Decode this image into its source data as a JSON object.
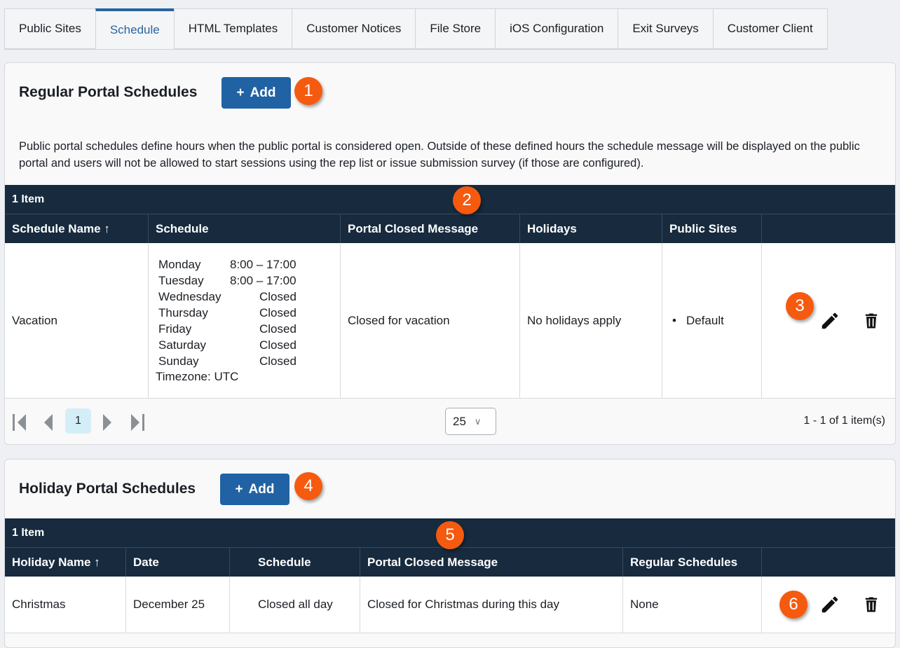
{
  "tabs": [
    {
      "label": "Public Sites"
    },
    {
      "label": "Schedule",
      "active": true
    },
    {
      "label": "HTML Templates"
    },
    {
      "label": "Customer Notices"
    },
    {
      "label": "File Store"
    },
    {
      "label": "iOS Configuration"
    },
    {
      "label": "Exit Surveys"
    },
    {
      "label": "Customer Client"
    }
  ],
  "regular": {
    "title": "Regular Portal Schedules",
    "add_label": "Add",
    "description": "Public portal schedules define hours when the public portal is considered open. Outside of these defined hours the schedule message will be displayed on the public portal and users will not be allowed to start sessions using the rep list or issue submission survey (if those are configured).",
    "count": "1 Item",
    "columns": [
      "Schedule Name ↑",
      "Schedule",
      "Portal Closed Message",
      "Holidays",
      "Public Sites",
      ""
    ],
    "row": {
      "name": "Vacation",
      "schedule": [
        {
          "day": "Monday",
          "hours": "8:00 – 17:00"
        },
        {
          "day": "Tuesday",
          "hours": "8:00 – 17:00"
        },
        {
          "day": "Wednesday",
          "hours": "Closed"
        },
        {
          "day": "Thursday",
          "hours": "Closed"
        },
        {
          "day": "Friday",
          "hours": "Closed"
        },
        {
          "day": "Saturday",
          "hours": "Closed"
        },
        {
          "day": "Sunday",
          "hours": "Closed"
        }
      ],
      "timezone": "Timezone: UTC",
      "message": "Closed for vacation",
      "holidays": "No holidays apply",
      "public_site": "Default"
    },
    "pager": {
      "page": "1",
      "page_size": "25",
      "summary": "1 - 1 of 1 item(s)"
    }
  },
  "holiday": {
    "title": "Holiday Portal Schedules",
    "add_label": "Add",
    "count": "1 Item",
    "columns": [
      "Holiday Name ↑",
      "Date",
      "Schedule",
      "Portal Closed Message",
      "Regular Schedules",
      ""
    ],
    "row": {
      "name": "Christmas",
      "date": "December 25",
      "schedule": "Closed all day",
      "message": "Closed for Christmas during this day",
      "regular": "None"
    }
  },
  "badges": [
    "1",
    "2",
    "3",
    "4",
    "5",
    "6"
  ],
  "colors": {
    "accent": "#2162a4",
    "header": "#172a3e",
    "badge": "#f55a0f"
  }
}
